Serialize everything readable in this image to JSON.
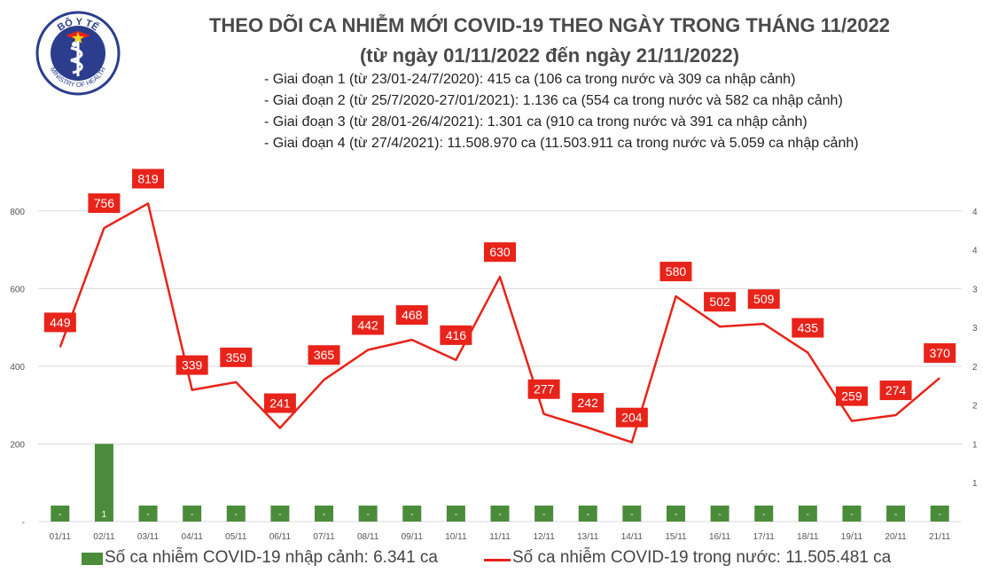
{
  "title": "THEO DÕI CA NHIỄM MỚI COVID-19 THEO NGÀY TRONG THÁNG 11/2022",
  "subtitle": "(từ ngày 01/11/2022 đến ngày 21/11/2022)",
  "logo": {
    "arc_text": "BỘ Y TẾ",
    "bottom_text": "MINISTRY OF HEALTH"
  },
  "notes": [
    "- Giai đoạn 1 (từ 23/01-24/7/2020): 415 ca (106 ca trong nước và 309 ca nhập cảnh)",
    "- Giai đoạn 2 (từ 25/7/2020-27/01/2021): 1.136 ca (554 ca trong nước và 582 ca nhập cảnh)",
    "- Giai đoạn 3 (từ 28/01-26/4/2021): 1.301 ca (910 ca trong nước và 391 ca nhập cảnh)",
    "- Giai đoạn 4 (từ 27/4/2021): 11.508.970 ca (11.503.911 ca trong nước và 5.059 ca nhập cảnh)"
  ],
  "legend": {
    "bar": "Số ca nhiễm COVID-19 nhập cảnh: 6.341 ca",
    "line": "Số ca nhiễm COVID-19 trong nước: 11.505.481 ca"
  },
  "colors": {
    "line": "#e8231a",
    "bar": "#4a8c3a",
    "label_bg": "#e8231a",
    "label_text": "#ffffff"
  },
  "chart_data": {
    "type": "bar+line",
    "categories": [
      "01/11",
      "02/11",
      "03/11",
      "04/11",
      "05/11",
      "06/11",
      "07/11",
      "08/11",
      "09/11",
      "10/11",
      "11/11",
      "12/11",
      "13/11",
      "14/11",
      "15/11",
      "16/11",
      "17/11",
      "18/11",
      "19/11",
      "20/11",
      "21/11"
    ],
    "series": [
      {
        "name": "Số ca nhiễm COVID-19 trong nước",
        "type": "line",
        "axis": "left",
        "values": [
          449,
          756,
          819,
          339,
          359,
          241,
          365,
          442,
          468,
          416,
          630,
          277,
          242,
          204,
          580,
          502,
          509,
          435,
          259,
          274,
          370
        ]
      },
      {
        "name": "Số ca nhiễm COVID-19 nhập cảnh",
        "type": "bar",
        "axis": "right",
        "values": [
          0,
          1,
          0,
          0,
          0,
          0,
          0,
          0,
          0,
          0,
          0,
          0,
          0,
          0,
          0,
          0,
          0,
          0,
          0,
          0,
          0
        ],
        "labels": [
          "-",
          "1",
          "-",
          "-",
          "-",
          "-",
          "-",
          "-",
          "-",
          "-",
          "-",
          "-",
          "-",
          "-",
          "-",
          "-",
          "-",
          "-",
          "-",
          "-",
          "-"
        ]
      }
    ],
    "left_axis": {
      "ticks": [
        "-",
        "200",
        "400",
        "600",
        "800"
      ],
      "tick_values": [
        0,
        200,
        400,
        600,
        800
      ],
      "ylim": [
        0,
        900
      ]
    },
    "right_axis": {
      "ticks": [
        "1",
        "1",
        "2",
        "2",
        "3",
        "3",
        "4",
        "4"
      ],
      "tick_values": [
        0.5,
        1,
        1.5,
        2,
        2.5,
        3,
        3.5,
        4
      ],
      "ylim": [
        0,
        4.5
      ]
    },
    "grid": true,
    "legend_position": "bottom"
  }
}
